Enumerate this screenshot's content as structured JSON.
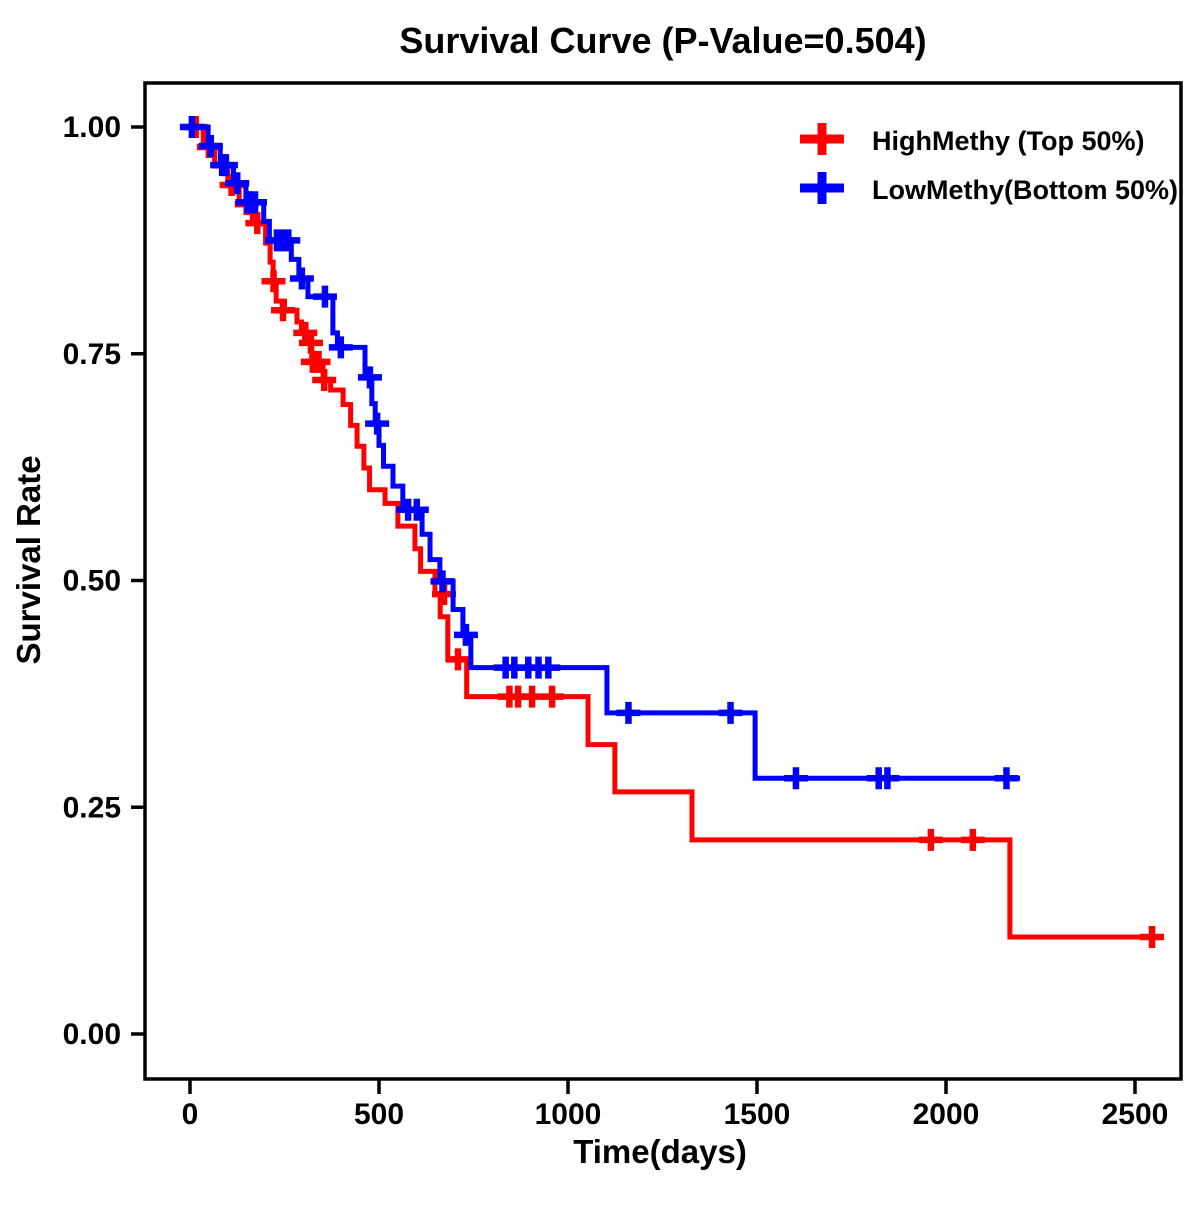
{
  "chart_data": {
    "type": "line",
    "subtype": "kaplan-meier-step",
    "title": "Survival Curve (P-Value=0.504)",
    "p_value": "0.504",
    "xlabel": "Time(days)",
    "ylabel": "Survival Rate",
    "xlim": [
      -120,
      2620
    ],
    "ylim": [
      -0.05,
      1.05
    ],
    "grid": false,
    "legend_position": "top-right",
    "x_ticks": [
      {
        "value": 0,
        "label": "0"
      },
      {
        "value": 500,
        "label": "500"
      },
      {
        "value": 1000,
        "label": "1000"
      },
      {
        "value": 1500,
        "label": "1500"
      },
      {
        "value": 2000,
        "label": "2000"
      },
      {
        "value": 2500,
        "label": "2500"
      }
    ],
    "y_ticks": [
      {
        "value": 1.0,
        "label": "1.00"
      },
      {
        "value": 0.75,
        "label": "0.75"
      },
      {
        "value": 0.5,
        "label": "0.50"
      },
      {
        "value": 0.25,
        "label": "0.25"
      },
      {
        "value": 0.0,
        "label": "0.00"
      }
    ],
    "series": [
      {
        "name": "HighMethy (Top 50%)",
        "color": "#ff0000",
        "end_time": 2566,
        "steps": [
          [
            0,
            1.0
          ],
          [
            35,
            0.978
          ],
          [
            65,
            0.957
          ],
          [
            100,
            0.936
          ],
          [
            130,
            0.915
          ],
          [
            165,
            0.894
          ],
          [
            200,
            0.872
          ],
          [
            212,
            0.851
          ],
          [
            220,
            0.83
          ],
          [
            228,
            0.808
          ],
          [
            250,
            0.798
          ],
          [
            283,
            0.785
          ],
          [
            295,
            0.773
          ],
          [
            310,
            0.762
          ],
          [
            322,
            0.741
          ],
          [
            352,
            0.721
          ],
          [
            372,
            0.71
          ],
          [
            405,
            0.694
          ],
          [
            425,
            0.671
          ],
          [
            442,
            0.648
          ],
          [
            460,
            0.624
          ],
          [
            475,
            0.6
          ],
          [
            516,
            0.585
          ],
          [
            550,
            0.56
          ],
          [
            595,
            0.535
          ],
          [
            610,
            0.51
          ],
          [
            648,
            0.485
          ],
          [
            662,
            0.46
          ],
          [
            682,
            0.413
          ],
          [
            732,
            0.372
          ],
          [
            1053,
            0.319
          ],
          [
            1124,
            0.267
          ],
          [
            1328,
            0.214
          ],
          [
            2169,
            0.107
          ]
        ],
        "censors": [
          [
            15,
            1.0
          ],
          [
            50,
            0.978
          ],
          [
            110,
            0.936
          ],
          [
            150,
            0.915
          ],
          [
            178,
            0.894
          ],
          [
            221,
            0.83
          ],
          [
            246,
            0.798
          ],
          [
            305,
            0.773
          ],
          [
            320,
            0.762
          ],
          [
            325,
            0.741
          ],
          [
            340,
            0.741
          ],
          [
            355,
            0.721
          ],
          [
            672,
            0.485
          ],
          [
            709,
            0.413
          ],
          [
            845,
            0.372
          ],
          [
            868,
            0.372
          ],
          [
            905,
            0.372
          ],
          [
            958,
            0.372
          ],
          [
            1960,
            0.214
          ],
          [
            2071,
            0.214
          ],
          [
            2545,
            0.107
          ]
        ]
      },
      {
        "name": "LowMethy(Bottom 50%)",
        "color": "#0000ff",
        "end_time": 2196,
        "steps": [
          [
            0,
            1.0
          ],
          [
            48,
            0.979
          ],
          [
            80,
            0.958
          ],
          [
            115,
            0.938
          ],
          [
            148,
            0.917
          ],
          [
            195,
            0.896
          ],
          [
            210,
            0.875
          ],
          [
            268,
            0.854
          ],
          [
            288,
            0.833
          ],
          [
            312,
            0.813
          ],
          [
            378,
            0.773
          ],
          [
            390,
            0.757
          ],
          [
            463,
            0.724
          ],
          [
            481,
            0.695
          ],
          [
            490,
            0.673
          ],
          [
            500,
            0.649
          ],
          [
            512,
            0.626
          ],
          [
            537,
            0.604
          ],
          [
            563,
            0.578
          ],
          [
            614,
            0.551
          ],
          [
            635,
            0.523
          ],
          [
            661,
            0.499
          ],
          [
            696,
            0.468
          ],
          [
            722,
            0.44
          ],
          [
            743,
            0.404
          ],
          [
            1103,
            0.354
          ],
          [
            1495,
            0.282
          ]
        ],
        "censors": [
          [
            5,
            1.0
          ],
          [
            55,
            0.979
          ],
          [
            85,
            0.958
          ],
          [
            95,
            0.958
          ],
          [
            125,
            0.938
          ],
          [
            152,
            0.917
          ],
          [
            158,
            0.917
          ],
          [
            172,
            0.917
          ],
          [
            230,
            0.875
          ],
          [
            245,
            0.875
          ],
          [
            260,
            0.875
          ],
          [
            296,
            0.833
          ],
          [
            357,
            0.813
          ],
          [
            399,
            0.757
          ],
          [
            476,
            0.724
          ],
          [
            495,
            0.673
          ],
          [
            577,
            0.578
          ],
          [
            600,
            0.578
          ],
          [
            668,
            0.499
          ],
          [
            730,
            0.44
          ],
          [
            835,
            0.404
          ],
          [
            858,
            0.404
          ],
          [
            895,
            0.404
          ],
          [
            922,
            0.404
          ],
          [
            948,
            0.404
          ],
          [
            1160,
            0.354
          ],
          [
            1430,
            0.354
          ],
          [
            1603,
            0.282
          ],
          [
            1822,
            0.282
          ],
          [
            1845,
            0.282
          ],
          [
            2160,
            0.282
          ]
        ]
      }
    ]
  }
}
